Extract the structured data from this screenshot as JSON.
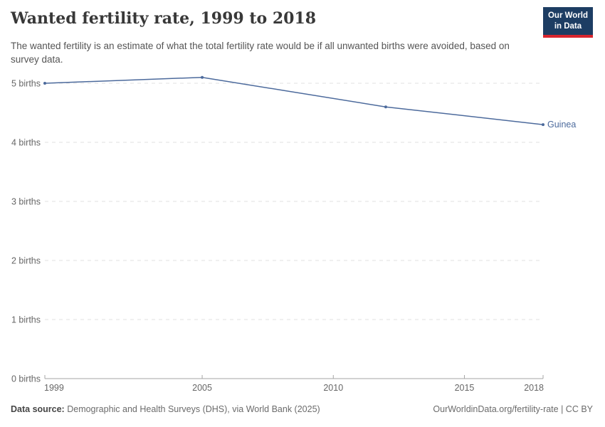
{
  "header": {
    "title": "Wanted fertility rate, 1999 to 2018",
    "subtitle": "The wanted fertility is an estimate of what the total fertility rate would be if all unwanted births were avoided, based on survey data.",
    "logo": {
      "line1": "Our World",
      "line2": "in Data",
      "bg_color": "#1d3d63",
      "accent_color": "#d8252e"
    }
  },
  "chart_data": {
    "type": "line",
    "title": "Wanted fertility rate, 1999 to 2018",
    "xlabel": "",
    "ylabel": "",
    "xlim": [
      1999,
      2018
    ],
    "ylim": [
      0,
      5.1
    ],
    "x_ticks": [
      1999,
      2005,
      2010,
      2015,
      2018
    ],
    "x_tick_labels": [
      "1999",
      "2005",
      "2010",
      "2015",
      "2018"
    ],
    "y_ticks": [
      0,
      1,
      2,
      3,
      4,
      5
    ],
    "y_tick_labels": [
      "0 births",
      "1 births",
      "2 births",
      "3 births",
      "4 births",
      "5 births"
    ],
    "grid": "horizontal-dashed",
    "legend": "end-of-line-label",
    "series": [
      {
        "name": "Guinea",
        "color": "#4c6a9c",
        "points": [
          {
            "year": 1999,
            "value": 5.0
          },
          {
            "year": 2005,
            "value": 5.1
          },
          {
            "year": 2012,
            "value": 4.6
          },
          {
            "year": 2018,
            "value": 4.3
          }
        ]
      }
    ]
  },
  "footer": {
    "source_label": "Data source:",
    "source_text": "Demographic and Health Surveys (DHS), via World Bank (2025)",
    "attribution": "OurWorldinData.org/fertility-rate | CC BY"
  }
}
